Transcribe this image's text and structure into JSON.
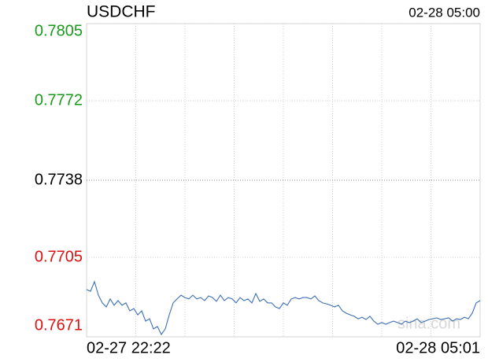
{
  "chart_data": {
    "type": "line",
    "title": "USDCHF",
    "subtitle": "02-28 05:00",
    "watermark": "sina.com",
    "categories": [
      "02-27 22:22",
      null,
      null,
      null,
      null,
      null,
      null,
      null,
      null,
      null,
      null,
      null,
      null,
      null,
      null,
      null,
      null,
      null,
      null,
      null,
      null,
      null,
      null,
      null,
      null,
      null,
      null,
      null,
      null,
      null,
      null,
      null,
      null,
      null,
      null,
      null,
      null,
      null,
      null,
      null,
      null,
      null,
      null,
      null,
      null,
      null,
      null,
      null,
      null,
      null,
      null,
      null,
      null,
      null,
      null,
      null,
      null,
      null,
      null,
      null,
      null,
      null,
      null,
      null,
      null,
      null,
      null,
      null,
      null,
      null,
      null,
      null,
      null,
      null,
      null,
      null,
      null,
      null,
      null,
      null,
      null,
      null,
      null,
      null,
      null,
      null,
      null,
      null,
      null,
      null,
      null,
      null,
      null,
      null,
      null,
      null,
      null,
      null,
      null,
      null,
      "02-28 05:01"
    ],
    "series": [
      {
        "name": "USDCHF",
        "color": "#3d6fb6",
        "values": [
          0.76912,
          0.76905,
          0.76946,
          0.76888,
          0.76855,
          0.76838,
          0.76872,
          0.76845,
          0.76865,
          0.76845,
          0.76855,
          0.76821,
          0.76831,
          0.76804,
          0.76821,
          0.76777,
          0.76787,
          0.76744,
          0.76754,
          0.7672,
          0.76744,
          0.76804,
          0.76855,
          0.76872,
          0.76888,
          0.76878,
          0.76872,
          0.76888,
          0.76872,
          0.76878,
          0.76865,
          0.76885,
          0.76878,
          0.76862,
          0.76888,
          0.76865,
          0.76878,
          0.76872,
          0.76855,
          0.76878,
          0.76865,
          0.76872,
          0.76855,
          0.76895,
          0.76862,
          0.76872,
          0.76855,
          0.76855,
          0.76838,
          0.76831,
          0.76855,
          0.76845,
          0.76872,
          0.76878,
          0.76872,
          0.76878,
          0.76878,
          0.76872,
          0.76885,
          0.76865,
          0.76855,
          0.76851,
          0.76845,
          0.76838,
          0.76845,
          0.76821,
          0.76811,
          0.76804,
          0.76798,
          0.76787,
          0.76794,
          0.76784,
          0.76798,
          0.76777,
          0.76764,
          0.76771,
          0.76764,
          0.76771,
          0.76777,
          0.76771,
          0.76764,
          0.76777,
          0.76771,
          0.76777,
          0.76787,
          0.76771,
          0.76777,
          0.76784,
          0.76787,
          0.76791,
          0.76784,
          0.76787,
          0.76791,
          0.76777,
          0.76787,
          0.76784,
          0.76794,
          0.76787,
          0.76811,
          0.76855,
          0.76865
        ]
      }
    ],
    "ylim": [
      0.7671,
      0.7805
    ],
    "yticks": [
      0.7805,
      0.7772,
      0.7738,
      0.7705,
      0.7671
    ],
    "ytick_colors": [
      "#1a9a1a",
      "#1a9a1a",
      "#000000",
      "#dd1111",
      "#dd1111"
    ],
    "grid": true
  }
}
